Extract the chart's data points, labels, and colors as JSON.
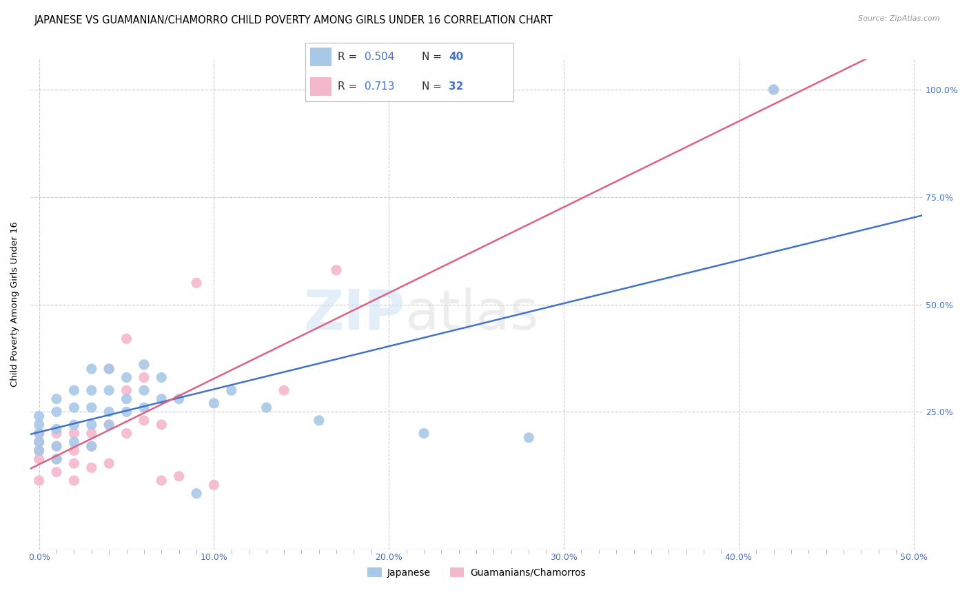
{
  "title": "JAPANESE VS GUAMANIAN/CHAMORRO CHILD POVERTY AMONG GIRLS UNDER 16 CORRELATION CHART",
  "source": "Source: ZipAtlas.com",
  "ylabel": "Child Poverty Among Girls Under 16",
  "xlim": [
    -0.005,
    0.505
  ],
  "ylim": [
    -0.07,
    1.07
  ],
  "xtick_labels": [
    "0.0%",
    "",
    "",
    "",
    "",
    "",
    "",
    "",
    "",
    "",
    "10.0%",
    "",
    "",
    "",
    "",
    "",
    "",
    "",
    "",
    "",
    "20.0%",
    "",
    "",
    "",
    "",
    "",
    "",
    "",
    "",
    "",
    "30.0%",
    "",
    "",
    "",
    "",
    "",
    "",
    "",
    "",
    "",
    "40.0%",
    "",
    "",
    "",
    "",
    "",
    "",
    "",
    "",
    "",
    "50.0%"
  ],
  "xtick_vals": [
    0.0,
    0.01,
    0.02,
    0.03,
    0.04,
    0.05,
    0.06,
    0.07,
    0.08,
    0.09,
    0.1,
    0.11,
    0.12,
    0.13,
    0.14,
    0.15,
    0.16,
    0.17,
    0.18,
    0.19,
    0.2,
    0.21,
    0.22,
    0.23,
    0.24,
    0.25,
    0.26,
    0.27,
    0.28,
    0.29,
    0.3,
    0.31,
    0.32,
    0.33,
    0.34,
    0.35,
    0.36,
    0.37,
    0.38,
    0.39,
    0.4,
    0.41,
    0.42,
    0.43,
    0.44,
    0.45,
    0.46,
    0.47,
    0.48,
    0.49,
    0.5
  ],
  "major_xtick_vals": [
    0.0,
    0.1,
    0.2,
    0.3,
    0.4,
    0.5
  ],
  "major_xtick_labels": [
    "0.0%",
    "10.0%",
    "20.0%",
    "30.0%",
    "40.0%",
    "50.0%"
  ],
  "ytick_labels": [
    "100.0%",
    "75.0%",
    "50.0%",
    "25.0%"
  ],
  "ytick_vals": [
    1.0,
    0.75,
    0.5,
    0.25
  ],
  "japanese_color": "#a8c8e8",
  "guam_color": "#f4b8cc",
  "japanese_line_color": "#4472c4",
  "guam_line_color": "#e06080",
  "r_japanese": 0.504,
  "n_japanese": 40,
  "r_guam": 0.713,
  "n_guam": 32,
  "legend_label_japanese": "Japanese",
  "legend_label_guam": "Guamanians/Chamorros",
  "watermark_zip": "ZIP",
  "watermark_atlas": "atlas",
  "japanese_x": [
    0.0,
    0.0,
    0.0,
    0.0,
    0.0,
    0.01,
    0.01,
    0.01,
    0.01,
    0.01,
    0.02,
    0.02,
    0.02,
    0.02,
    0.03,
    0.03,
    0.03,
    0.03,
    0.03,
    0.04,
    0.04,
    0.04,
    0.04,
    0.05,
    0.05,
    0.05,
    0.06,
    0.06,
    0.06,
    0.07,
    0.07,
    0.08,
    0.09,
    0.1,
    0.11,
    0.13,
    0.16,
    0.22,
    0.28,
    0.42
  ],
  "japanese_y": [
    0.16,
    0.18,
    0.2,
    0.22,
    0.24,
    0.14,
    0.17,
    0.21,
    0.25,
    0.28,
    0.18,
    0.22,
    0.26,
    0.3,
    0.17,
    0.22,
    0.26,
    0.3,
    0.35,
    0.22,
    0.25,
    0.3,
    0.35,
    0.25,
    0.28,
    0.33,
    0.26,
    0.3,
    0.36,
    0.28,
    0.33,
    0.28,
    0.06,
    0.27,
    0.3,
    0.26,
    0.23,
    0.2,
    0.19,
    1.0
  ],
  "guam_x": [
    0.0,
    0.0,
    0.0,
    0.0,
    0.0,
    0.01,
    0.01,
    0.01,
    0.01,
    0.02,
    0.02,
    0.02,
    0.02,
    0.03,
    0.03,
    0.03,
    0.04,
    0.04,
    0.04,
    0.05,
    0.05,
    0.05,
    0.06,
    0.06,
    0.07,
    0.07,
    0.08,
    0.09,
    0.1,
    0.14,
    0.17,
    0.42
  ],
  "guam_y": [
    0.14,
    0.16,
    0.18,
    0.2,
    0.09,
    0.11,
    0.14,
    0.17,
    0.2,
    0.13,
    0.16,
    0.2,
    0.09,
    0.12,
    0.17,
    0.2,
    0.13,
    0.22,
    0.35,
    0.2,
    0.3,
    0.42,
    0.23,
    0.33,
    0.09,
    0.22,
    0.1,
    0.55,
    0.08,
    0.3,
    0.58,
    1.0
  ],
  "background_color": "#ffffff",
  "grid_color": "#cccccc"
}
